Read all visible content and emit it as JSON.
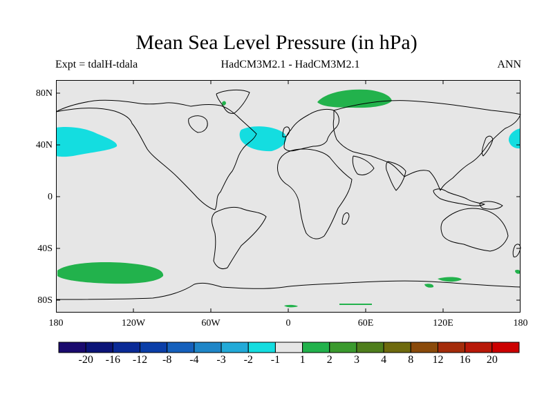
{
  "title": "Mean Sea Level Pressure (in hPa)",
  "subtitle_left": "Expt = tdalH-tdala",
  "subtitle_center": "HadCM3M2.1 - HadCM3M2.1",
  "subtitle_right": "ANN",
  "lat_labels": [
    "80N",
    "40N",
    "0",
    "40S",
    "80S"
  ],
  "lon_labels": [
    "180",
    "120W",
    "60W",
    "0",
    "60E",
    "120E",
    "180"
  ],
  "colorbar": {
    "labels": [
      "-20",
      "-16",
      "-12",
      "-8",
      "-4",
      "-3",
      "-2",
      "-1",
      "1",
      "2",
      "3",
      "4",
      "8",
      "12",
      "16",
      "20"
    ],
    "colors": [
      "#1a0a6e",
      "#0b1478",
      "#0a2a96",
      "#0a3ea8",
      "#1560bc",
      "#1f86c8",
      "#22aad8",
      "#14dde0",
      "#e6e6e6",
      "#22b24c",
      "#3a9a2e",
      "#4e7e1c",
      "#6e6a0e",
      "#8a4a0a",
      "#a42c0a",
      "#b81808",
      "#cc0000"
    ]
  },
  "colors": {
    "background_field": "#e6e6e6",
    "negative_anomaly": "#14dde0",
    "positive_anomaly": "#22b24c",
    "coastline": "#000000"
  }
}
